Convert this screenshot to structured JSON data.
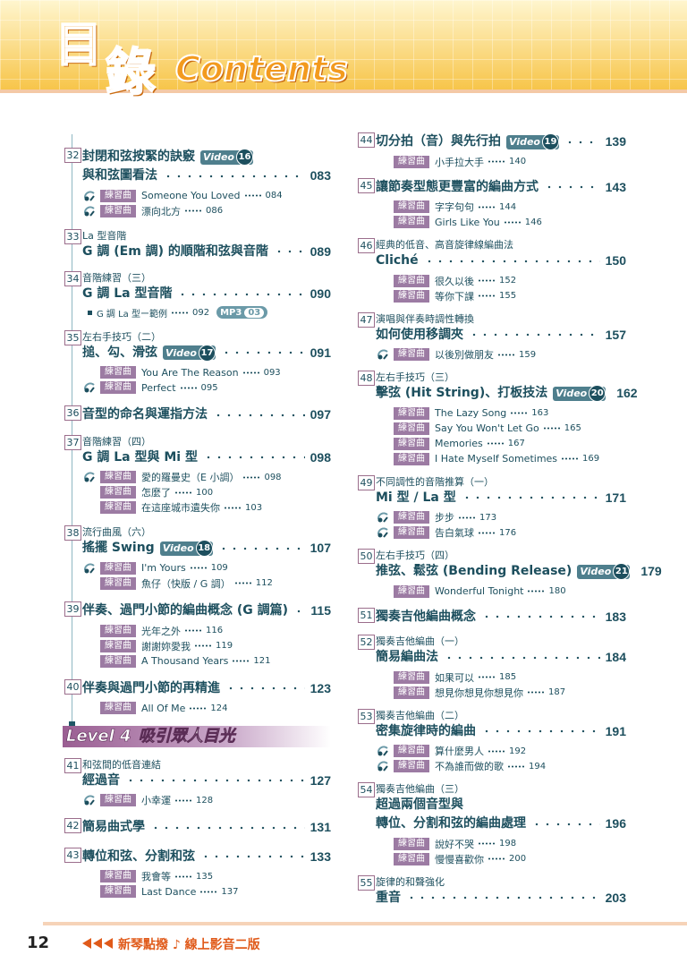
{
  "header": {
    "title_1": "目",
    "title_2": "錄",
    "title_en": "Contents"
  },
  "practice_label": "練習曲",
  "video_label": "Video",
  "mp3_label": "MP3",
  "left": [
    {
      "num": "32",
      "title": [
        "封閉和弦按緊的訣竅",
        "與和弦圖看法"
      ],
      "video": 16,
      "page": "083",
      "items": [
        {
          "title": "Someone You Loved",
          "page": "084",
          "audio": true
        },
        {
          "title": "漂向北方",
          "page": "086",
          "audio": true
        }
      ]
    },
    {
      "num": "33",
      "sub": "La 型音階",
      "title": [
        "G 調 (Em 調) 的順階和弦與音階"
      ],
      "page": "089"
    },
    {
      "num": "34",
      "sub": "音階練習（三）",
      "title": [
        "G 調 La 型音階"
      ],
      "page": "090",
      "note": {
        "title": "G 調 La 型ー範例",
        "page": "092",
        "mp3": "03"
      }
    },
    {
      "num": "35",
      "sub": "左右手技巧（二）",
      "title": [
        "搥、勾、滑弦"
      ],
      "video": 17,
      "page": "091",
      "items": [
        {
          "title": "You Are The Reason",
          "page": "093"
        },
        {
          "title": "Perfect",
          "page": "095",
          "audio": true
        }
      ]
    },
    {
      "num": "36",
      "title": [
        "音型的命名與運指方法"
      ],
      "page": "097"
    },
    {
      "num": "37",
      "sub": "音階練習（四）",
      "title": [
        "G 調 La 型與 Mi 型"
      ],
      "page": "098",
      "items": [
        {
          "title": "愛的羅曼史（E 小調）",
          "page": "098",
          "audio": true
        },
        {
          "title": "怎麼了",
          "page": "100"
        },
        {
          "title": "在這座城市遺失你",
          "page": "103"
        }
      ]
    },
    {
      "num": "38",
      "sub": "流行曲風（六）",
      "title": [
        "搖擺 Swing"
      ],
      "video": 18,
      "page": "107",
      "items": [
        {
          "title": "I'm Yours",
          "page": "109",
          "audio": true
        },
        {
          "title": "魚仔（快版 / G 調）",
          "page": "112"
        }
      ]
    },
    {
      "num": "39",
      "title": [
        "伴奏、過門小節的編曲概念 (G 調篇)"
      ],
      "page": "115",
      "items": [
        {
          "title": "光年之外",
          "page": "116"
        },
        {
          "title": "謝謝妳愛我",
          "page": "119"
        },
        {
          "title": "A Thousand Years",
          "page": "121"
        }
      ]
    },
    {
      "num": "40",
      "title": [
        "伴奏與過門小節的再精進"
      ],
      "page": "123",
      "items": [
        {
          "title": "All Of Me",
          "page": "124"
        }
      ]
    },
    {
      "level": "Level 4",
      "theme": "吸引眾人目光"
    },
    {
      "num": "41",
      "sub": "和弦間的低音連結",
      "title": [
        "經過音"
      ],
      "page": "127",
      "items": [
        {
          "title": "小幸運",
          "page": "128",
          "audio": true
        }
      ]
    },
    {
      "num": "42",
      "title": [
        "簡易曲式學"
      ],
      "page": "131"
    },
    {
      "num": "43",
      "title": [
        "轉位和弦、分割和弦"
      ],
      "page": "133",
      "items": [
        {
          "title": "我會等",
          "page": "135"
        },
        {
          "title": "Last Dance",
          "page": "137"
        }
      ]
    }
  ],
  "right": [
    {
      "num": "44",
      "title": [
        "切分拍（音）與先行拍"
      ],
      "video": 19,
      "page": "139",
      "items": [
        {
          "title": "小手拉大手",
          "page": "140"
        }
      ]
    },
    {
      "num": "45",
      "title": [
        "讓節奏型態更豐富的編曲方式"
      ],
      "page": "143",
      "items": [
        {
          "title": "字字句句",
          "page": "144"
        },
        {
          "title": "Girls Like You",
          "page": "146"
        }
      ]
    },
    {
      "num": "46",
      "sub": "經典的低音、高音旋律線編曲法",
      "title": [
        "Cliché"
      ],
      "page": "150",
      "items": [
        {
          "title": "很久以後",
          "page": "152"
        },
        {
          "title": "等你下課",
          "page": "155"
        }
      ]
    },
    {
      "num": "47",
      "sub": "演唱與伴奏時調性轉換",
      "title": [
        "如何使用移調夾"
      ],
      "page": "157",
      "items": [
        {
          "title": "以後別做朋友",
          "page": "159",
          "audio": true
        }
      ]
    },
    {
      "num": "48",
      "sub": "左右手技巧（三）",
      "title": [
        "擊弦 (Hit String)、打板技法"
      ],
      "video": 20,
      "page": "162",
      "items": [
        {
          "title": "The Lazy Song",
          "page": "163"
        },
        {
          "title": "Say You Won't Let Go",
          "page": "165"
        },
        {
          "title": "Memories",
          "page": "167"
        },
        {
          "title": "I Hate Myself Sometimes",
          "page": "169"
        }
      ]
    },
    {
      "num": "49",
      "sub": "不同調性的音階推算（一）",
      "title": [
        "Mi 型 / La 型"
      ],
      "page": "171",
      "items": [
        {
          "title": "步步",
          "page": "173",
          "audio": true
        },
        {
          "title": "告白氣球",
          "page": "176",
          "audio": true
        }
      ]
    },
    {
      "num": "50",
      "sub": "左右手技巧（四）",
      "title": [
        "推弦、鬆弦 (Bending Release)"
      ],
      "video": 21,
      "page": "179",
      "items": [
        {
          "title": "Wonderful Tonight",
          "page": "180"
        }
      ]
    },
    {
      "num": "51",
      "title": [
        "獨奏吉他編曲概念"
      ],
      "page": "183"
    },
    {
      "num": "52",
      "sub": "獨奏吉他編曲（一）",
      "title": [
        "簡易編曲法"
      ],
      "page": "184",
      "items": [
        {
          "title": "如果可以",
          "page": "185"
        },
        {
          "title": "想見你想見你想見你",
          "page": "187"
        }
      ]
    },
    {
      "num": "53",
      "sub": "獨奏吉他編曲（二）",
      "title": [
        "密集旋律時的編曲"
      ],
      "page": "191",
      "items": [
        {
          "title": "算什麼男人",
          "page": "192",
          "audio": true
        },
        {
          "title": "不為誰而做的歌",
          "page": "194",
          "audio": true
        }
      ]
    },
    {
      "num": "54",
      "sub": "獨奏吉他編曲（三）",
      "title": [
        "超過兩個音型與",
        "轉位、分割和弦的編曲處理"
      ],
      "page": "196",
      "items": [
        {
          "title": "說好不哭",
          "page": "198"
        },
        {
          "title": "慢慢喜歡你",
          "page": "200"
        }
      ]
    },
    {
      "num": "55",
      "sub": "旋律的和聲強化",
      "title": [
        "重音"
      ],
      "page": "203"
    }
  ],
  "footer": {
    "page_number": "12",
    "book": "新琴點撥 ♪ 線上影音二版"
  }
}
